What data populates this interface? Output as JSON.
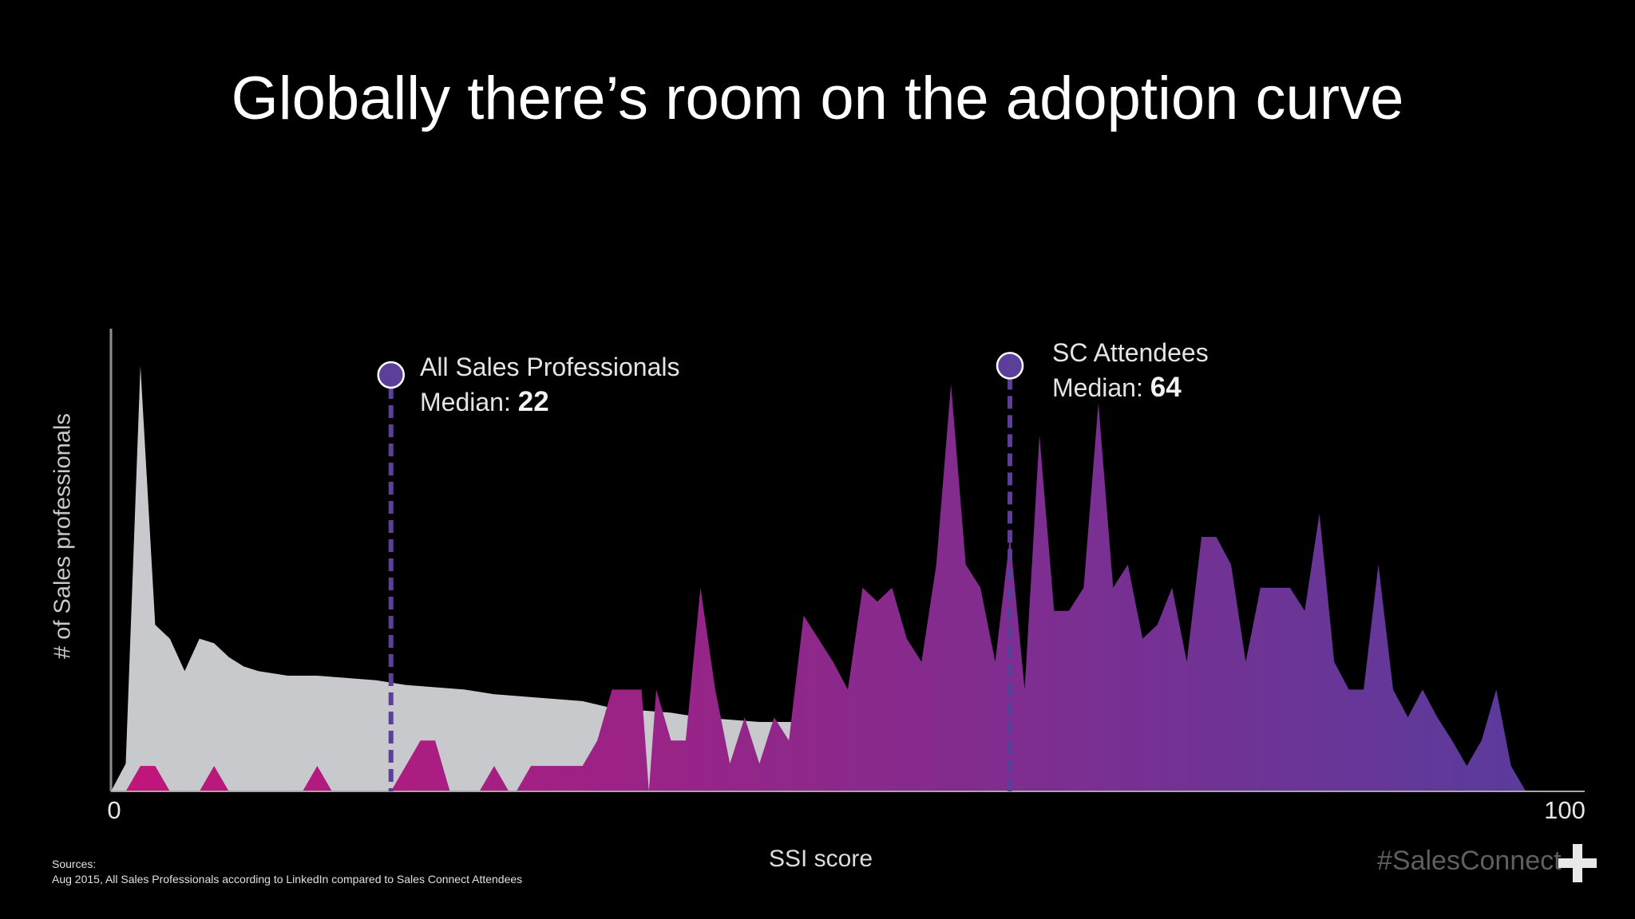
{
  "title": "Globally there’s room on the adoption curve",
  "colors": {
    "background": "#000000",
    "all_sales_fill": "#c8c9cc",
    "sc_gradient_start": "#c0157a",
    "sc_gradient_end": "#5a3b9c",
    "median_marker": "#5b3f9a"
  },
  "chart_data": {
    "type": "area",
    "xlabel": "SSI score",
    "ylabel": "# of Sales professionals",
    "xlim": [
      0,
      100
    ],
    "ylim": [
      0,
      100
    ],
    "grid": false,
    "x_tick_labels": [
      "0",
      "100"
    ],
    "series": [
      {
        "name": "All Sales Professionals",
        "points": [
          [
            0,
            0
          ],
          [
            1,
            6
          ],
          [
            2,
            92
          ],
          [
            3,
            36
          ],
          [
            4,
            33
          ],
          [
            5,
            26
          ],
          [
            6,
            33
          ],
          [
            7,
            32
          ],
          [
            8,
            29
          ],
          [
            9,
            27
          ],
          [
            10,
            26
          ],
          [
            11,
            25.5
          ],
          [
            12,
            25
          ],
          [
            14,
            25
          ],
          [
            16,
            24.5
          ],
          [
            18,
            24
          ],
          [
            20,
            23
          ],
          [
            22,
            22.5
          ],
          [
            24,
            22
          ],
          [
            26,
            21
          ],
          [
            28,
            20.5
          ],
          [
            30,
            20
          ],
          [
            32,
            19.5
          ],
          [
            34,
            18
          ],
          [
            36,
            17.5
          ],
          [
            38,
            17
          ],
          [
            40,
            16
          ],
          [
            42,
            15.5
          ],
          [
            44,
            15
          ],
          [
            46,
            15
          ],
          [
            48,
            15
          ],
          [
            49,
            0
          ]
        ]
      },
      {
        "name": "SC Attendees",
        "points": [
          [
            1,
            0
          ],
          [
            2,
            5.5
          ],
          [
            3,
            5.5
          ],
          [
            4,
            0
          ],
          [
            6,
            0
          ],
          [
            7,
            5.5
          ],
          [
            8,
            0
          ],
          [
            13,
            0
          ],
          [
            14,
            5.5
          ],
          [
            15,
            0
          ],
          [
            19,
            0
          ],
          [
            21,
            11
          ],
          [
            22,
            11
          ],
          [
            23,
            0
          ],
          [
            25,
            0
          ],
          [
            26,
            5.5
          ],
          [
            27,
            0
          ],
          [
            27.5,
            0
          ],
          [
            28.5,
            5.5
          ],
          [
            32,
            5.5
          ],
          [
            33,
            11
          ],
          [
            34,
            22
          ],
          [
            35,
            22
          ],
          [
            36,
            22
          ],
          [
            36.5,
            0
          ],
          [
            37,
            22
          ],
          [
            38,
            11
          ],
          [
            39,
            11
          ],
          [
            40,
            44
          ],
          [
            41,
            22
          ],
          [
            42,
            6
          ],
          [
            43,
            16
          ],
          [
            44,
            6
          ],
          [
            45,
            16
          ],
          [
            46,
            11
          ],
          [
            47,
            38
          ],
          [
            48,
            33
          ],
          [
            49,
            28
          ],
          [
            50,
            22
          ],
          [
            51,
            44
          ],
          [
            52,
            41
          ],
          [
            53,
            44
          ],
          [
            54,
            33
          ],
          [
            55,
            28
          ],
          [
            56,
            49
          ],
          [
            57,
            88
          ],
          [
            58,
            49
          ],
          [
            59,
            44
          ],
          [
            60,
            28
          ],
          [
            61,
            55
          ],
          [
            62,
            22
          ],
          [
            63,
            77
          ],
          [
            64,
            39
          ],
          [
            65,
            39
          ],
          [
            66,
            44
          ],
          [
            67,
            84
          ],
          [
            68,
            44
          ],
          [
            69,
            49
          ],
          [
            70,
            33
          ],
          [
            71,
            36
          ],
          [
            72,
            44
          ],
          [
            73,
            28
          ],
          [
            74,
            55
          ],
          [
            75,
            55
          ],
          [
            76,
            49
          ],
          [
            77,
            28
          ],
          [
            78,
            44
          ],
          [
            79,
            44
          ],
          [
            80,
            44
          ],
          [
            81,
            39
          ],
          [
            82,
            60
          ],
          [
            83,
            28
          ],
          [
            84,
            22
          ],
          [
            85,
            22
          ],
          [
            86,
            49
          ],
          [
            87,
            22
          ],
          [
            88,
            16
          ],
          [
            89,
            22
          ],
          [
            90,
            16
          ],
          [
            91,
            11
          ],
          [
            92,
            5.5
          ],
          [
            93,
            11
          ],
          [
            94,
            22
          ],
          [
            95,
            5.5
          ],
          [
            96,
            0
          ]
        ]
      }
    ],
    "annotations": [
      {
        "series": "All Sales Professionals",
        "label": "All Sales Professionals",
        "median_label": "Median:",
        "median": 22,
        "x": 19,
        "y": 90
      },
      {
        "series": "SC Attendees",
        "label": "SC Attendees",
        "median_label": "Median:",
        "median": 64,
        "x": 61,
        "y": 92
      }
    ]
  },
  "footer": {
    "sources_heading": "Sources:",
    "sources_text": "Aug 2015, All Sales Professionals according to LinkedIn compared to Sales Connect Attendees",
    "hashtag": "#SalesConnect",
    "logo_icon": "plus-icon"
  }
}
